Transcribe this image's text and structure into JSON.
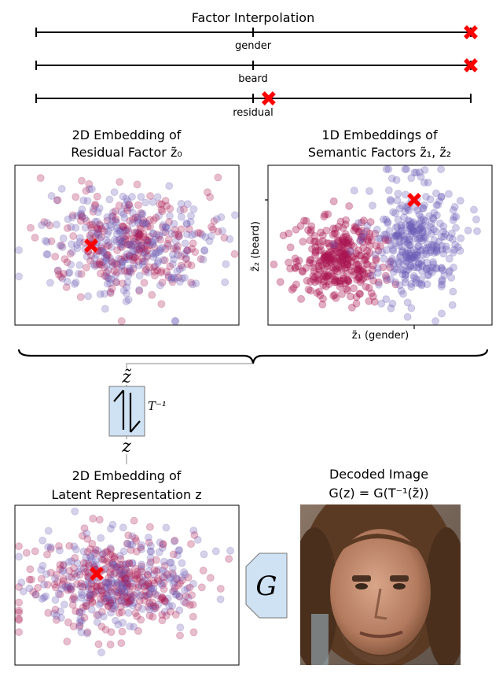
{
  "title": "Factor Interpolation",
  "sliders": [
    {
      "label": "gender",
      "position": 1.0
    },
    {
      "label": "beard",
      "position": 1.0
    },
    {
      "label": "residual",
      "position": 0.535
    }
  ],
  "panels": {
    "residual": {
      "line1": "2D Embedding of",
      "line2": "Residual Factor z̃₀"
    },
    "semantic": {
      "line1": "1D Embeddings of",
      "line2": "Semantic Factors z̃₁, z̃₂",
      "xlabel": "z̃₁ (gender)",
      "ylabel": "z̃₂ (beard)"
    },
    "latent": {
      "line1": "2D Embedding of",
      "line2": "Latent Representation z"
    },
    "decoded": {
      "line1": "Decoded Image",
      "line2": "G(z) = G(T⁻¹(z̃))"
    }
  },
  "transform": {
    "top": "z̃",
    "bottom": "z",
    "label": "T⁻¹"
  },
  "generator": {
    "label": "G"
  },
  "colors": {
    "class_a": "#a8144f",
    "class_b": "#6a5ab5",
    "marker": "#ff0000",
    "box_fill": "#cfe2f3"
  }
}
